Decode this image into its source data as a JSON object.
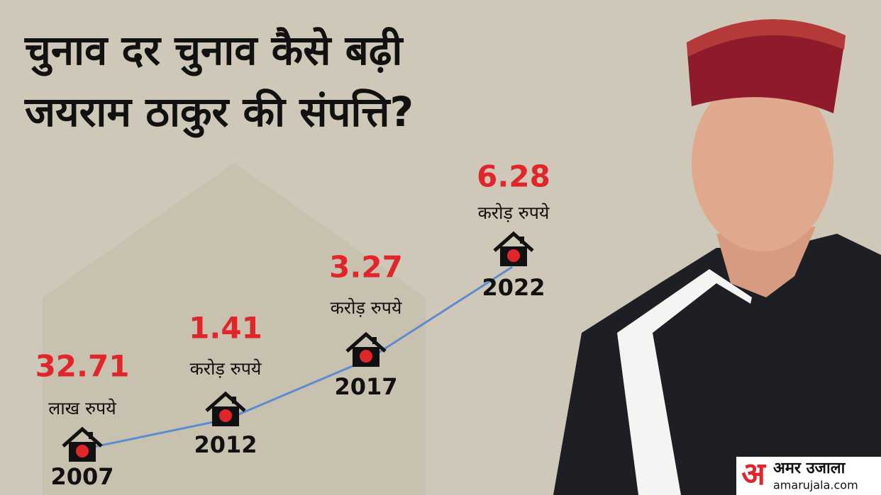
{
  "header": {
    "title_lines": [
      "चुनाव दर चुनाव कैसे बढ़ी",
      "जयराम ठाकुर की संपत्ति?"
    ]
  },
  "points": [
    {
      "amount": 32.71,
      "unit": "लाख रुपये",
      "year": 2007
    },
    {
      "amount": 1.41,
      "unit": "करोड़ रुपये",
      "year": 2012
    },
    {
      "amount": 3.27,
      "unit": "करोड़ रुपये",
      "year": 2017
    },
    {
      "amount": 6.28,
      "unit": "करोड़ रुपये",
      "year": 2022
    }
  ],
  "logo": {
    "mark": "अ",
    "name": "अमर उजाला",
    "site": "amarujala.com"
  }
}
